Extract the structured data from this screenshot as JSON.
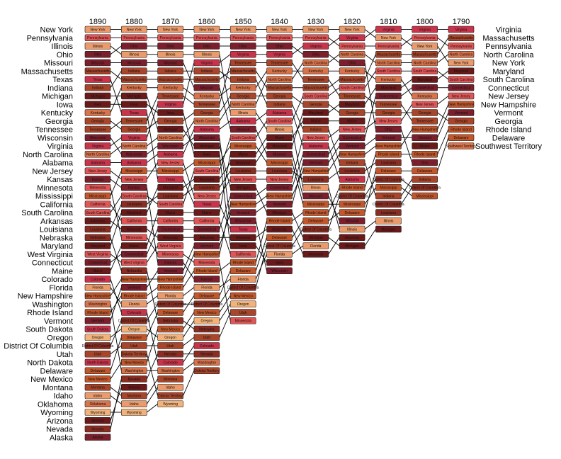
{
  "chart_data": {
    "type": "bump",
    "years": [
      "1890",
      "1880",
      "1870",
      "1860",
      "1850",
      "1840",
      "1830",
      "1820",
      "1810",
      "1800",
      "1790"
    ],
    "rankings": {
      "1890": [
        "New York",
        "Pennsylvania",
        "Illinois",
        "Ohio",
        "Missouri",
        "Massachusetts",
        "Texas",
        "Indiana",
        "Michigan",
        "Iowa",
        "Kentucky",
        "Georgia",
        "Tennessee",
        "Wisconsin",
        "Virginia",
        "North Carolina",
        "Alabama",
        "New Jersey",
        "Kansas",
        "Minnesota",
        "Mississippi",
        "California",
        "South Carolina",
        "Arkansas",
        "Louisiana",
        "Nebraska",
        "Maryland",
        "West Virginia",
        "Connecticut",
        "Maine",
        "Colorado",
        "Florida",
        "New Hampshire",
        "Washington",
        "Rhode Island",
        "Vermont",
        "South Dakota",
        "Oregon",
        "District Of Columbia",
        "Utah",
        "North Dakota",
        "Delaware",
        "New Mexico",
        "Montana",
        "Idaho",
        "Oklahoma",
        "Wyoming",
        "Arizona",
        "Nevada",
        "Alaska"
      ],
      "1880": [
        "New York",
        "Pennsylvania",
        "Ohio",
        "Illinois",
        "Missouri",
        "Indiana",
        "Massachusetts",
        "Kentucky",
        "Michigan",
        "Iowa",
        "Texas",
        "Tennessee",
        "Georgia",
        "Virginia",
        "North Carolina",
        "Wisconsin",
        "Alabama",
        "Mississippi",
        "New Jersey",
        "Kansas",
        "South Carolina",
        "Louisiana",
        "Maryland",
        "California",
        "Arkansas",
        "Minnesota",
        "Maine",
        "Connecticut",
        "West Virginia",
        "Nebraska",
        "New Hampshire",
        "Vermont",
        "Rhode Island",
        "Florida",
        "Colorado",
        "District Of Columbia",
        "Oregon",
        "Delaware",
        "Utah",
        "Dakota Territory",
        "New Mexico",
        "Washington",
        "Nevada",
        "Arizona",
        "Montana",
        "Idaho",
        "Wyoming"
      ],
      "1870": [
        "New York",
        "Pennsylvania",
        "Ohio",
        "Illinois",
        "Missouri",
        "Indiana",
        "Massachusetts",
        "Kentucky",
        "Tennessee",
        "Virginia",
        "Iowa",
        "Georgia",
        "Michigan",
        "North Carolina",
        "Wisconsin",
        "Alabama",
        "New Jersey",
        "Mississippi",
        "Texas",
        "Maryland",
        "Louisiana",
        "South Carolina",
        "Maine",
        "California",
        "Connecticut",
        "Arkansas",
        "West Virginia",
        "Minnesota",
        "Kansas",
        "Vermont",
        "New Hampshire",
        "Rhode Island",
        "Florida",
        "District Of Columbia",
        "Delaware",
        "Nebraska",
        "New Mexico",
        "Oregon",
        "Utah",
        "Nevada",
        "Colorado",
        "Washington",
        "Montana",
        "Idaho",
        "Dakota Territory",
        "Wyoming"
      ],
      "1860": [
        "New York",
        "Pennsylvania",
        "Ohio",
        "Illinois",
        "Virginia",
        "Indiana",
        "Massachusetts",
        "Missouri",
        "Kentucky",
        "Tennessee",
        "Georgia",
        "North Carolina",
        "Alabama",
        "Wisconsin",
        "Michigan",
        "Iowa",
        "Mississippi",
        "South Carolina",
        "Maryland",
        "Louisiana",
        "New Jersey",
        "Texas",
        "Maine",
        "California",
        "Connecticut",
        "Arkansas",
        "Vermont",
        "New Hampshire",
        "Minnesota",
        "Rhode Island",
        "Kansas",
        "Florida",
        "Delaware",
        "District Of Columbia",
        "New Mexico",
        "Oregon",
        "Nebraska",
        "Utah",
        "Colorado",
        "Nevada",
        "Washington",
        "Dakota Territory"
      ],
      "1850": [
        "New York",
        "Pennsylvania",
        "Ohio",
        "Virginia",
        "Tennessee",
        "Massachusetts",
        "Indiana",
        "Kentucky",
        "Georgia",
        "North Carolina",
        "Illinois",
        "Alabama",
        "Missouri",
        "South Carolina",
        "Mississippi",
        "Maine",
        "Maryland",
        "Louisiana",
        "New Jersey",
        "Michigan",
        "Connecticut",
        "New Hampshire",
        "Vermont",
        "Wisconsin",
        "Texas",
        "Arkansas",
        "Iowa",
        "California",
        "Rhode Island",
        "Delaware",
        "Florida",
        "District Of Columbia",
        "New Mexico",
        "Oregon",
        "Utah",
        "Minnesota"
      ],
      "1840": [
        "New York",
        "Pennsylvania",
        "Ohio",
        "Virginia",
        "Tennessee",
        "Kentucky",
        "North Carolina",
        "Massachusetts",
        "Georgia",
        "Indiana",
        "Alabama",
        "South Carolina",
        "Illinois",
        "Maine",
        "Maryland",
        "Missouri",
        "Mississippi",
        "Louisiana",
        "New Jersey",
        "Connecticut",
        "New Hampshire",
        "Vermont",
        "Michigan",
        "Rhode Island",
        "Arkansas",
        "Delaware",
        "District Of Columbia",
        "Florida",
        "Iowa",
        "Wisconsin"
      ],
      "1830": [
        "New York",
        "Pennsylvania",
        "Virginia",
        "Ohio",
        "North Carolina",
        "Kentucky",
        "Tennessee",
        "Massachusetts",
        "South Carolina",
        "Georgia",
        "Maryland",
        "Maine",
        "Indiana",
        "New Jersey",
        "Alabama",
        "Connecticut",
        "Vermont",
        "New Hampshire",
        "Louisiana",
        "Illinois",
        "Missouri",
        "Mississippi",
        "Rhode Island",
        "Delaware",
        "District Of Columbia",
        "Michigan",
        "Florida",
        "Arkansas"
      ],
      "1820": [
        "New York",
        "Virginia",
        "Pennsylvania",
        "North Carolina",
        "Ohio",
        "Kentucky",
        "Massachusetts",
        "South Carolina",
        "Tennessee",
        "Maryland",
        "Georgia",
        "Maine",
        "New Jersey",
        "Connecticut",
        "Vermont",
        "New Hampshire",
        "Indiana",
        "Louisiana",
        "Alabama",
        "Rhode Island",
        "District Of Columbia",
        "Mississippi",
        "Delaware",
        "Missouri",
        "Illinois",
        "Arkansas",
        "Michigan"
      ],
      "1810": [
        "Virginia",
        "New York",
        "Pennsylvania",
        "Massachusetts",
        "North Carolina",
        "South Carolina",
        "Kentucky",
        "Maryland",
        "Connecticut",
        "Tennessee",
        "Georgia",
        "New Jersey",
        "Ohio",
        "Vermont",
        "New Hampshire",
        "Rhode Island",
        "Louisiana",
        "Delaware",
        "District Of Columbia",
        "Mississippi",
        "Indiana",
        "District Of Columbia",
        "Louisiana",
        "Illinois",
        "Michigan"
      ],
      "1800": [
        "Virginia",
        "Pennsylvania",
        "New York",
        "Massachusetts",
        "North Carolina",
        "South Carolina",
        "Maryland",
        "Connecticut",
        "Kentucky",
        "New Jersey",
        "Georgia",
        "Tennessee",
        "New Hampshire",
        "Vermont",
        "Maine",
        "Rhode Island",
        "Ohio",
        "Delaware",
        "Indiana",
        "District Of Columbia",
        "Mississippi"
      ],
      "1790": [
        "Virginia",
        "Massachusetts",
        "Pennsylvania",
        "North Carolina",
        "New York",
        "Maryland",
        "South Carolina",
        "Connecticut",
        "New Jersey",
        "New Hampshire",
        "Vermont",
        "Georgia",
        "Rhode Island",
        "Delaware",
        "Southwest Territory"
      ]
    },
    "left_labels": [
      "New York",
      "Pennsylvania",
      "Illinois",
      "Ohio",
      "Missouri",
      "Massachusetts",
      "Texas",
      "Indiana",
      "Michigan",
      "Iowa",
      "Kentucky",
      "Georgia",
      "Tennessee",
      "Wisconsin",
      "Virginia",
      "North Carolina",
      "Alabama",
      "New Jersey",
      "Kansas",
      "Minnesota",
      "Mississippi",
      "California",
      "South Carolina",
      "Arkansas",
      "Louisiana",
      "Nebraska",
      "Maryland",
      "West Virginia",
      "Connecticut",
      "Maine",
      "Colorado",
      "Florida",
      "New Hampshire",
      "Washington",
      "Rhode Island",
      "Vermont",
      "South Dakota",
      "Oregon",
      "District Of Columbia",
      "Utah",
      "North Dakota",
      "Delaware",
      "New Mexico",
      "Montana",
      "Idaho",
      "Oklahoma",
      "Wyoming",
      "Arizona",
      "Nevada",
      "Alaska"
    ],
    "right_labels": [
      "Virginia",
      "Massachusetts",
      "Pennsylvania",
      "North Carolina",
      "New York",
      "Maryland",
      "South Carolina",
      "Connecticut",
      "New Jersey",
      "New Hampshire",
      "Vermont",
      "Georgia",
      "Rhode Island",
      "Delaware",
      "Southwest Territory"
    ],
    "palette": [
      "#6b1a1a",
      "#8a2d22",
      "#a8452a",
      "#c2572c",
      "#d9734a",
      "#ea9a6b",
      "#e05555",
      "#c8344a",
      "#f2b27a",
      "#7a1f2b"
    ],
    "legend": "none",
    "grid": false
  }
}
